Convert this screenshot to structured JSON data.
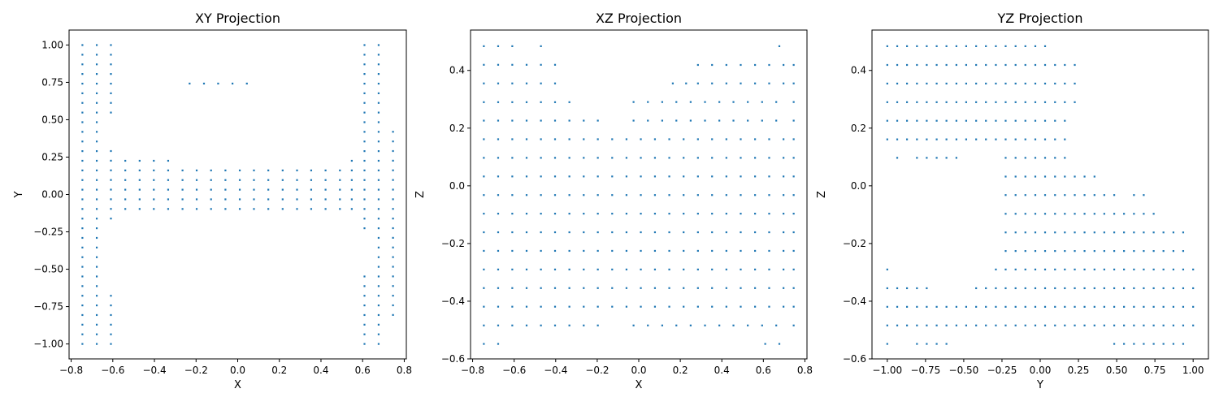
{
  "chart_data": [
    {
      "type": "scatter",
      "title": "XY Projection",
      "xlabel": "X",
      "ylabel": "Y",
      "xlim": [
        -0.81,
        0.81
      ],
      "ylim": [
        -1.1,
        1.1
      ],
      "xticks": [
        -0.8,
        -0.6,
        -0.4,
        -0.2,
        0.0,
        0.2,
        0.4,
        0.6,
        0.8
      ],
      "xtick_labels": [
        "−0.8",
        "−0.6",
        "−0.4",
        "−0.2",
        "0.0",
        "0.2",
        "0.4",
        "0.6",
        "0.8"
      ],
      "yticks": [
        -1.0,
        -0.75,
        -0.5,
        -0.25,
        0.0,
        0.25,
        0.5,
        0.75,
        1.0
      ],
      "ytick_labels": [
        "−1.00",
        "−0.75",
        "−0.50",
        "−0.25",
        "0.00",
        "0.25",
        "0.50",
        "0.75",
        "1.00"
      ],
      "grid": false,
      "marker_color": "#1f77b4",
      "point_groups": [
        {
          "x_values": [
            -0.746,
            -0.677
          ],
          "y_start": -1.0,
          "y_end": 1.0,
          "y_step": 0.0645
        },
        {
          "x_values": [
            -0.609
          ],
          "y_start": 0.548,
          "y_end": 1.0,
          "y_step": 0.0645
        },
        {
          "x_values": [
            -0.609
          ],
          "y_start": -0.161,
          "y_end": 0.29,
          "y_step": 0.0645
        },
        {
          "x_values": [
            -0.609
          ],
          "y_start": -1.0,
          "y_end": -0.677,
          "y_step": 0.0645
        },
        {
          "x_values": [
            -0.54,
            -0.471,
            -0.403,
            -0.334
          ],
          "y_start": -0.097,
          "y_end": 0.226,
          "y_step": 0.0645
        },
        {
          "x_values": [
            -0.265,
            -0.197,
            -0.128,
            -0.059,
            0.01,
            0.078,
            0.147,
            0.216,
            0.285,
            0.353,
            0.422,
            0.491
          ],
          "y_start": -0.097,
          "y_end": 0.161,
          "y_step": 0.0645
        },
        {
          "x_values": [
            -0.231,
            -0.162,
            -0.094,
            -0.025,
            0.044
          ],
          "y_start": 0.742,
          "y_end": 0.742,
          "y_step": 0.0645
        },
        {
          "x_values": [
            0.548
          ],
          "y_start": -0.097,
          "y_end": 0.226,
          "y_step": 0.0645
        },
        {
          "x_values": [
            0.609
          ],
          "y_start": -0.226,
          "y_end": 1.0,
          "y_step": 0.0645
        },
        {
          "x_values": [
            0.609
          ],
          "y_start": -1.0,
          "y_end": -0.548,
          "y_step": 0.0645
        },
        {
          "x_values": [
            0.677
          ],
          "y_start": -1.0,
          "y_end": 1.0,
          "y_step": 0.0645
        },
        {
          "x_values": [
            0.746
          ],
          "y_start": -0.806,
          "y_end": 0.419,
          "y_step": 0.0645
        }
      ]
    },
    {
      "type": "scatter",
      "title": "XZ Projection",
      "xlabel": "X",
      "ylabel": "Z",
      "xlim": [
        -0.81,
        0.81
      ],
      "ylim": [
        -0.6,
        0.54
      ],
      "xticks": [
        -0.8,
        -0.6,
        -0.4,
        -0.2,
        0.0,
        0.2,
        0.4,
        0.6,
        0.8
      ],
      "xtick_labels": [
        "−0.8",
        "−0.6",
        "−0.4",
        "−0.2",
        "0.0",
        "0.2",
        "0.4",
        "0.6",
        "0.8"
      ],
      "yticks": [
        -0.6,
        -0.4,
        -0.2,
        0.0,
        0.2,
        0.4
      ],
      "ytick_labels": [
        "−0.6",
        "−0.4",
        "−0.2",
        "0.0",
        "0.2",
        "0.4"
      ],
      "grid": false,
      "marker_color": "#1f77b4",
      "point_groups": [
        {
          "x_values": [
            -0.746,
            -0.677,
            -0.609,
            -0.54,
            -0.471,
            -0.403,
            -0.334,
            -0.265,
            -0.197,
            -0.128,
            -0.059,
            0.01,
            0.078,
            0.147,
            0.216,
            0.285,
            0.353,
            0.422,
            0.491,
            0.56,
            0.628,
            0.697,
            0.746
          ],
          "y_start": -0.419,
          "y_end": 0.161,
          "y_step": 0.0645
        },
        {
          "x_values": [
            -0.746,
            -0.677,
            -0.609,
            -0.54,
            -0.471,
            -0.403,
            -0.334,
            -0.265,
            -0.197
          ],
          "y_start": -0.484,
          "y_end": -0.484,
          "y_step": 0.0645
        },
        {
          "x_values": [
            -0.746,
            -0.677,
            -0.609,
            -0.54,
            -0.471,
            -0.403,
            -0.334,
            -0.265,
            -0.197
          ],
          "y_start": 0.226,
          "y_end": 0.226,
          "y_step": 0.0645
        },
        {
          "x_values": [
            -0.746,
            -0.677,
            -0.609,
            -0.54,
            -0.471,
            -0.403,
            -0.334
          ],
          "y_start": 0.29,
          "y_end": 0.29,
          "y_step": 0.0645
        },
        {
          "x_values": [
            -0.746,
            -0.677,
            -0.609,
            -0.54,
            -0.471,
            -0.403
          ],
          "y_start": 0.355,
          "y_end": 0.419,
          "y_step": 0.0645
        },
        {
          "x_values": [
            -0.746,
            -0.677,
            -0.609,
            -0.471
          ],
          "y_start": 0.484,
          "y_end": 0.484,
          "y_step": 0.0645
        },
        {
          "x_values": [
            -0.746,
            -0.677
          ],
          "y_start": -0.548,
          "y_end": -0.548,
          "y_step": 0.0645
        },
        {
          "x_values": [
            -0.025,
            0.044,
            0.113,
            0.181,
            0.25,
            0.319,
            0.388,
            0.456,
            0.525,
            0.594,
            0.662,
            0.746
          ],
          "y_start": -0.484,
          "y_end": -0.484,
          "y_step": 0.0645
        },
        {
          "x_values": [
            -0.025,
            0.044,
            0.113,
            0.181,
            0.25,
            0.319,
            0.388,
            0.456,
            0.525,
            0.594,
            0.662,
            0.746
          ],
          "y_start": 0.226,
          "y_end": 0.29,
          "y_step": 0.0645
        },
        {
          "x_values": [
            0.164,
            0.228,
            0.285,
            0.353,
            0.422,
            0.491,
            0.56,
            0.628,
            0.697,
            0.746
          ],
          "y_start": 0.355,
          "y_end": 0.355,
          "y_step": 0.0645
        },
        {
          "x_values": [
            0.285,
            0.353,
            0.422,
            0.491,
            0.56,
            0.628,
            0.697,
            0.746
          ],
          "y_start": 0.419,
          "y_end": 0.419,
          "y_step": 0.0645
        },
        {
          "x_values": [
            0.677
          ],
          "y_start": 0.484,
          "y_end": 0.484,
          "y_step": 0.0645
        },
        {
          "x_values": [
            0.609,
            0.677
          ],
          "y_start": -0.548,
          "y_end": -0.548,
          "y_step": 0.0645
        }
      ]
    },
    {
      "type": "scatter",
      "title": "YZ Projection",
      "xlabel": "Y",
      "ylabel": "Z",
      "xlim": [
        -1.1,
        1.1
      ],
      "ylim": [
        -0.6,
        0.54
      ],
      "xticks": [
        -1.0,
        -0.75,
        -0.5,
        -0.25,
        0.0,
        0.25,
        0.5,
        0.75,
        1.0
      ],
      "xtick_labels": [
        "−1.00",
        "−0.75",
        "−0.50",
        "−0.25",
        "0.00",
        "0.25",
        "0.50",
        "0.75",
        "1.00"
      ],
      "yticks": [
        -0.6,
        -0.4,
        -0.2,
        0.0,
        0.2,
        0.4
      ],
      "ytick_labels": [
        "−0.6",
        "−0.4",
        "−0.2",
        "0.0",
        "0.2",
        "0.4"
      ],
      "grid": false,
      "marker_color": "#1f77b4",
      "point_groups": [
        {
          "x_values": [
            -1.0,
            -0.935,
            -0.871,
            -0.806,
            -0.742,
            -0.677,
            -0.613,
            -0.548,
            -0.484,
            -0.419,
            -0.355,
            -0.29,
            -0.226,
            -0.161,
            -0.097,
            -0.032,
            0.032
          ],
          "y_start": 0.484,
          "y_end": 0.484,
          "y_step": 0.0645
        },
        {
          "x_values": [
            -1.0,
            -0.935,
            -0.871,
            -0.806,
            -0.742,
            -0.677,
            -0.613,
            -0.548,
            -0.484,
            -0.419,
            -0.355,
            -0.29,
            -0.226,
            -0.161,
            -0.097,
            -0.032,
            0.032,
            0.097,
            0.161,
            0.226
          ],
          "y_start": 0.29,
          "y_end": 0.419,
          "y_step": 0.0645
        },
        {
          "x_values": [
            -1.0,
            -0.935,
            -0.871,
            -0.806,
            -0.742,
            -0.677,
            -0.613,
            -0.548,
            -0.484,
            -0.419,
            -0.355,
            -0.29,
            -0.226,
            -0.161,
            -0.097,
            -0.032,
            0.032,
            0.097,
            0.161
          ],
          "y_start": 0.161,
          "y_end": 0.226,
          "y_step": 0.0645
        },
        {
          "x_values": [
            -0.935,
            -0.806,
            -0.742,
            -0.677,
            -0.613,
            -0.548
          ],
          "y_start": 0.097,
          "y_end": 0.097,
          "y_step": 0.0645
        },
        {
          "x_values": [
            -0.226,
            -0.161,
            -0.097,
            -0.032,
            0.032,
            0.097,
            0.161
          ],
          "y_start": 0.097,
          "y_end": 0.097,
          "y_step": 0.0645
        },
        {
          "x_values": [
            -0.226,
            -0.161,
            -0.097,
            -0.032,
            0.032,
            0.097,
            0.161,
            0.226,
            0.29,
            0.355
          ],
          "y_start": 0.032,
          "y_end": 0.032,
          "y_step": 0.0645
        },
        {
          "x_values": [
            -0.226,
            -0.161,
            -0.097,
            -0.032,
            0.032,
            0.097,
            0.161,
            0.226,
            0.29,
            0.355,
            0.419,
            0.484,
            0.613,
            0.677
          ],
          "y_start": -0.032,
          "y_end": -0.032,
          "y_step": 0.0645
        },
        {
          "x_values": [
            -0.226,
            -0.161,
            -0.097,
            -0.032,
            0.032,
            0.097,
            0.161,
            0.226,
            0.29,
            0.355,
            0.419,
            0.484,
            0.548,
            0.613,
            0.677,
            0.742
          ],
          "y_start": -0.097,
          "y_end": -0.097,
          "y_step": 0.0645
        },
        {
          "x_values": [
            -0.226,
            -0.161,
            -0.097,
            -0.032,
            0.032,
            0.097,
            0.161,
            0.226,
            0.29,
            0.355,
            0.419,
            0.484,
            0.548,
            0.613,
            0.677,
            0.742,
            0.806,
            0.871,
            0.935
          ],
          "y_start": -0.226,
          "y_end": -0.161,
          "y_step": 0.0645
        },
        {
          "x_values": [
            -0.29,
            -0.226,
            -0.161,
            -0.097,
            -0.032,
            0.032,
            0.097,
            0.161,
            0.226,
            0.29,
            0.355,
            0.419,
            0.484,
            0.548,
            0.613,
            0.677,
            0.742,
            0.806,
            0.871,
            0.935,
            1.0
          ],
          "y_start": -0.29,
          "y_end": -0.29,
          "y_step": 0.0645
        },
        {
          "x_values": [
            -1.0,
            -0.935,
            -0.871,
            -0.806,
            -0.742
          ],
          "y_start": -0.355,
          "y_end": -0.355,
          "y_step": 0.0645
        },
        {
          "x_values": [
            -1.0
          ],
          "y_start": -0.29,
          "y_end": -0.29,
          "y_step": 0.0645
        },
        {
          "x_values": [
            -0.419,
            -0.355,
            -0.29,
            -0.226,
            -0.161,
            -0.097,
            -0.032,
            0.032,
            0.097,
            0.161,
            0.226,
            0.29,
            0.355,
            0.419,
            0.484,
            0.548,
            0.613,
            0.677,
            0.742,
            0.806,
            0.871,
            0.935,
            1.0
          ],
          "y_start": -0.355,
          "y_end": -0.355,
          "y_step": 0.0645
        },
        {
          "x_values": [
            -1.0,
            -0.935,
            -0.871,
            -0.806,
            -0.742,
            -0.677,
            -0.613,
            -0.548,
            -0.484,
            -0.419,
            -0.355,
            -0.29,
            -0.226,
            -0.161,
            -0.097,
            -0.032,
            0.032,
            0.097,
            0.161,
            0.226,
            0.29,
            0.355,
            0.419,
            0.484,
            0.548,
            0.613,
            0.677,
            0.742,
            0.806,
            0.871,
            0.935,
            1.0
          ],
          "y_start": -0.484,
          "y_end": -0.419,
          "y_step": 0.0645
        },
        {
          "x_values": [
            -1.0,
            -0.806,
            -0.742,
            -0.677,
            -0.613
          ],
          "y_start": -0.548,
          "y_end": -0.548,
          "y_step": 0.0645
        },
        {
          "x_values": [
            0.484,
            0.548,
            0.613,
            0.677,
            0.742,
            0.806,
            0.871,
            0.935
          ],
          "y_start": -0.548,
          "y_end": -0.548,
          "y_step": 0.0645
        }
      ]
    }
  ]
}
